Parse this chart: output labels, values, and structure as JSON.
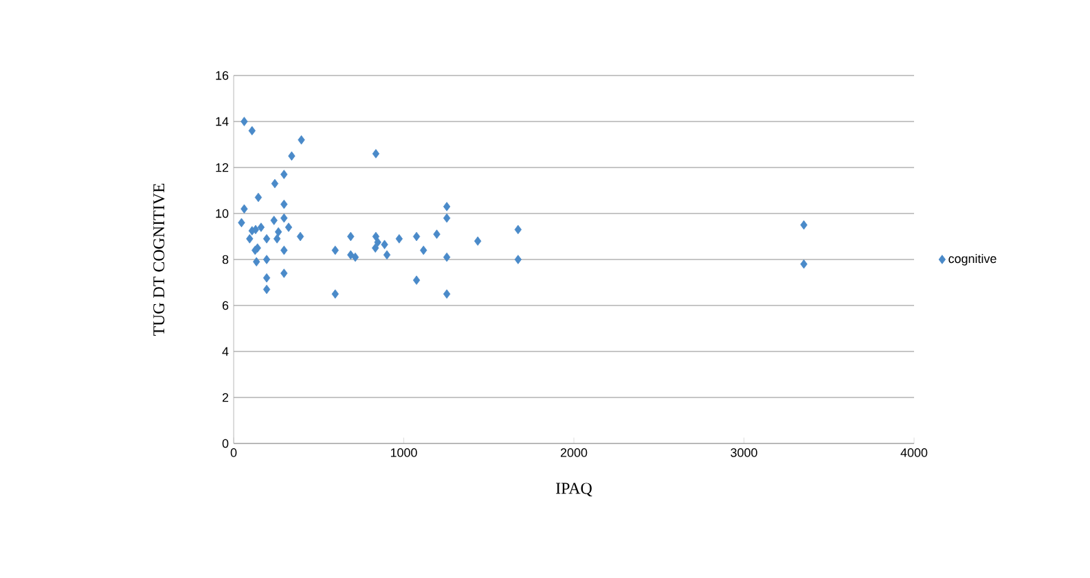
{
  "chart_data": {
    "type": "scatter",
    "xlabel": "IPAQ",
    "ylabel": "TUG DT COGNITIVE",
    "xlim": [
      0,
      4000
    ],
    "xticks": [
      0,
      1000,
      2000,
      3000,
      4000
    ],
    "ylim": [
      0,
      16
    ],
    "yticks": [
      0,
      2,
      4,
      6,
      8,
      10,
      12,
      14,
      16
    ],
    "grid": "y",
    "legend": "right",
    "marker": "diamond",
    "series": [
      {
        "name": "cognitive",
        "color": "#4a8ac9",
        "x": [
          62,
          108,
          398,
          341,
          836,
          296,
          242,
          145,
          296,
          62,
          1253,
          1253,
          46,
          237,
          296,
          263,
          323,
          108,
          161,
          129,
          94,
          194,
          255,
          392,
          688,
          836,
          847,
          887,
          973,
          1075,
          1194,
          1435,
          1672,
          140,
          126,
          296,
          597,
          833,
          901,
          1116,
          134,
          194,
          688,
          715,
          1253,
          1672,
          194,
          296,
          194,
          1075,
          597,
          1253,
          3352,
          3352
        ],
        "values": [
          14.0,
          13.6,
          13.2,
          12.5,
          12.6,
          11.7,
          11.3,
          10.7,
          10.4,
          10.2,
          10.3,
          9.8,
          9.6,
          9.7,
          9.8,
          9.2,
          9.4,
          9.25,
          9.4,
          9.3,
          8.9,
          8.9,
          8.9,
          9.0,
          9.0,
          9.0,
          8.75,
          8.65,
          8.9,
          9.0,
          9.1,
          8.8,
          9.3,
          8.5,
          8.4,
          8.4,
          8.4,
          8.5,
          8.2,
          8.4,
          7.9,
          8.0,
          8.2,
          8.1,
          8.1,
          8.0,
          7.2,
          7.4,
          6.7,
          7.1,
          6.5,
          6.5,
          9.5,
          7.8
        ]
      }
    ]
  }
}
